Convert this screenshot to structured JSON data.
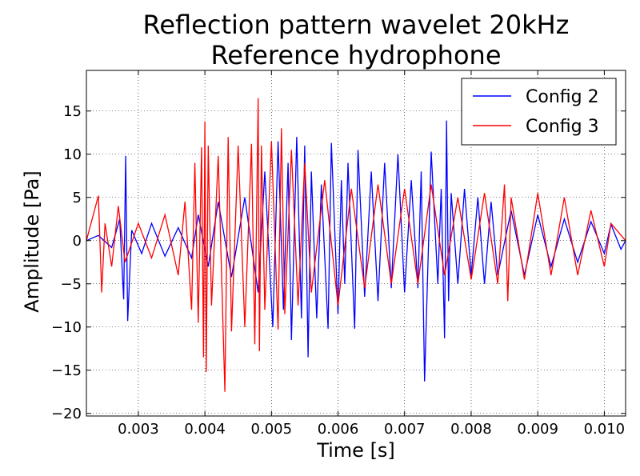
{
  "chart_data": {
    "type": "line",
    "title_line1": "Reflection pattern wavelet 20kHz",
    "title_line2": "Reference hydrophone",
    "xlabel": "Time [s]",
    "ylabel": "Amplitude [Pa]",
    "xlim": [
      0.00222,
      0.01032
    ],
    "ylim": [
      -20.3,
      19.7
    ],
    "xticks": [
      0.003,
      0.004,
      0.005,
      0.006,
      0.007,
      0.008,
      0.009,
      0.01
    ],
    "xtick_labels": [
      "0.003",
      "0.004",
      "0.005",
      "0.006",
      "0.007",
      "0.008",
      "0.009",
      "0.010"
    ],
    "yticks": [
      -20,
      -15,
      -10,
      -5,
      0,
      5,
      10,
      15
    ],
    "ytick_labels": [
      "−20",
      "−15",
      "−10",
      "−5",
      "0",
      "5",
      "10",
      "15"
    ],
    "grid": true,
    "legend_position": "upper-right",
    "series": [
      {
        "name": "Config 2",
        "color": "#0000ff",
        "x": [
          0.00222,
          0.0024,
          0.0026,
          0.00272,
          0.00278,
          0.00281,
          0.00284,
          0.0029,
          0.00305,
          0.0032,
          0.0034,
          0.0036,
          0.0038,
          0.0039,
          0.00405,
          0.0042,
          0.0044,
          0.0046,
          0.0048,
          0.0049,
          0.00502,
          0.0051,
          0.00518,
          0.00525,
          0.0053,
          0.00538,
          0.00545,
          0.0055,
          0.00555,
          0.0056,
          0.00568,
          0.00575,
          0.00585,
          0.0059,
          0.006,
          0.00605,
          0.0061,
          0.00615,
          0.00625,
          0.0063,
          0.0064,
          0.0065,
          0.0066,
          0.0067,
          0.0068,
          0.0069,
          0.007,
          0.0071,
          0.0072,
          0.00725,
          0.0073,
          0.0074,
          0.0075,
          0.00755,
          0.0076,
          0.00763,
          0.00766,
          0.0077,
          0.0078,
          0.0079,
          0.008,
          0.0081,
          0.0082,
          0.0083,
          0.0084,
          0.0086,
          0.0088,
          0.009,
          0.0092,
          0.0094,
          0.0096,
          0.0098,
          0.01,
          0.0101,
          0.01025,
          0.01032
        ],
        "y": [
          0,
          0.6,
          -0.8,
          2.5,
          -6.8,
          9.8,
          -9.3,
          1.2,
          -1.5,
          2.0,
          -1.8,
          1.5,
          -2.0,
          3.0,
          -3.0,
          4.5,
          -4.2,
          5.0,
          -6.0,
          8.0,
          -10.0,
          11.5,
          -8.0,
          9.0,
          -11.5,
          12.0,
          -9.0,
          11.0,
          -13.5,
          8.0,
          -9.0,
          6.5,
          -10.2,
          11.3,
          -8.5,
          7.0,
          -5.0,
          9.0,
          -10.2,
          10.5,
          -6.5,
          8.0,
          -7.0,
          9.0,
          -5.5,
          10.0,
          -6.0,
          7.0,
          -5.5,
          8.0,
          -16.3,
          10.3,
          -5.0,
          6.0,
          -11.3,
          13.9,
          -7.0,
          5.5,
          -5.0,
          6.0,
          -4.0,
          5.0,
          -5.0,
          4.5,
          -4.0,
          3.5,
          -4.0,
          3.0,
          -3.0,
          2.5,
          -2.5,
          2.2,
          -1.5,
          1.9,
          -1.0,
          0
        ]
      },
      {
        "name": "Config 3",
        "color": "#ff0000",
        "x": [
          0.00222,
          0.0024,
          0.00245,
          0.0025,
          0.0026,
          0.0027,
          0.0028,
          0.003,
          0.0032,
          0.0034,
          0.0036,
          0.0037,
          0.0038,
          0.00385,
          0.0039,
          0.00395,
          0.00398,
          0.004,
          0.00402,
          0.00405,
          0.0041,
          0.0042,
          0.0043,
          0.00435,
          0.0044,
          0.0045,
          0.0046,
          0.0047,
          0.00475,
          0.0048,
          0.00482,
          0.00485,
          0.0049,
          0.005,
          0.0051,
          0.00515,
          0.0052,
          0.0053,
          0.0054,
          0.0055,
          0.0056,
          0.0058,
          0.006,
          0.0062,
          0.0064,
          0.0066,
          0.0068,
          0.007,
          0.0072,
          0.0074,
          0.0076,
          0.0078,
          0.008,
          0.0082,
          0.0084,
          0.0085,
          0.00855,
          0.0086,
          0.0088,
          0.009,
          0.0092,
          0.0094,
          0.0096,
          0.0098,
          0.01,
          0.0101,
          0.01032
        ],
        "y": [
          0,
          5.2,
          -6.0,
          2.0,
          -3.0,
          4.0,
          -2.5,
          2.0,
          -2.0,
          3.0,
          -4.0,
          4.5,
          -8.0,
          9.0,
          -9.5,
          10.8,
          -13.5,
          13.8,
          -15.2,
          11.0,
          -7.5,
          9.8,
          -17.5,
          12.0,
          -10.5,
          11.0,
          -10.0,
          11.2,
          -12.0,
          16.5,
          -12.8,
          11.0,
          -8.0,
          11.5,
          -10.3,
          13.0,
          -8.5,
          10.5,
          -7.5,
          9.0,
          -6.0,
          7.0,
          -7.5,
          6.0,
          -5.5,
          6.5,
          -5.0,
          6.0,
          -5.0,
          6.5,
          -4.0,
          5.0,
          -4.5,
          5.5,
          -5.0,
          6.5,
          -7.0,
          5.0,
          -4.5,
          5.5,
          -4.0,
          5.0,
          -4.0,
          3.5,
          -3.0,
          2.0,
          0
        ]
      }
    ]
  }
}
